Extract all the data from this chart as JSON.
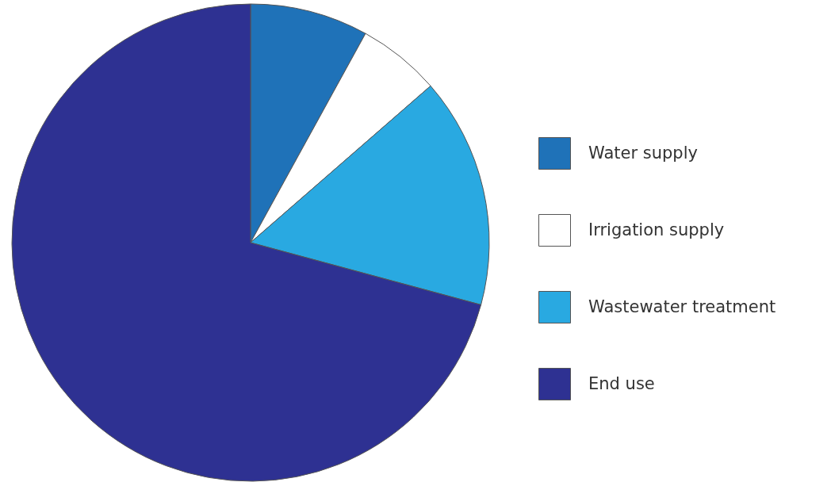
{
  "chart_data": {
    "type": "pie",
    "categories": [
      "Water supply",
      "Irrigation supply",
      "Wastewater treatment",
      "End use"
    ],
    "values": [
      8,
      5.6,
      15.6,
      70.8
    ],
    "colors": [
      "#1f72b8",
      "#ffffff",
      "#29a9e1",
      "#2e3192"
    ],
    "legend": "right"
  }
}
